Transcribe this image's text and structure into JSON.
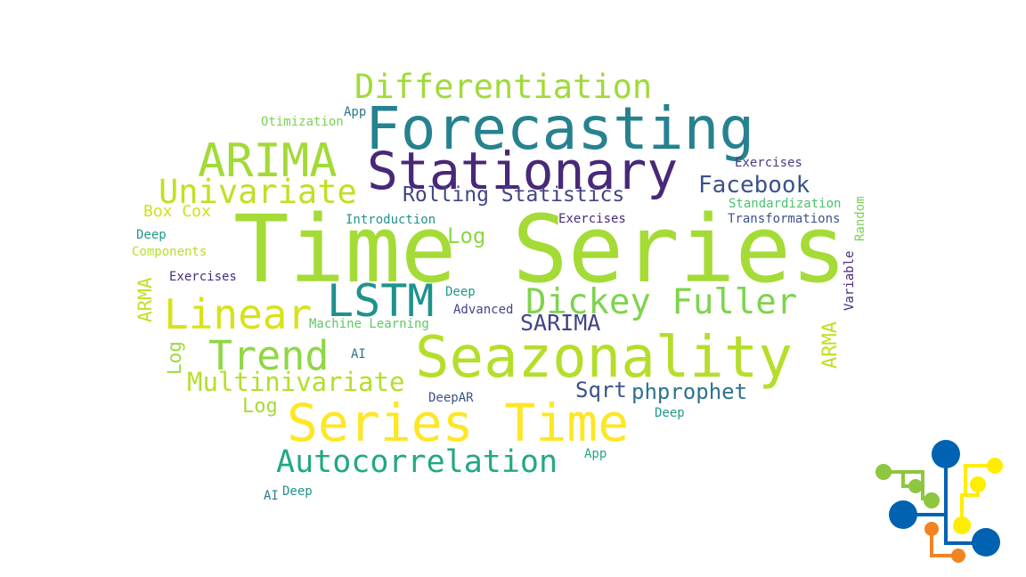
{
  "cloud": {
    "words": [
      {
        "text": "Time Series",
        "color": "#a5db36"
      },
      {
        "text": "Forecasting",
        "color": "#26828e"
      },
      {
        "text": "Stationary",
        "color": "#482878"
      },
      {
        "text": "Seazonality",
        "color": "#b5de2b"
      },
      {
        "text": "Series Time",
        "color": "#fde725"
      },
      {
        "text": "Differentiation",
        "color": "#a0da39"
      },
      {
        "text": "ARIMA",
        "color": "#a2da37"
      },
      {
        "text": "Univariate",
        "color": "#c2df23"
      },
      {
        "text": "Rolling Statistics",
        "color": "#414487"
      },
      {
        "text": "Facebook",
        "color": "#3b528b"
      },
      {
        "text": "Exercises",
        "color": "#433e85"
      },
      {
        "text": "Otimization",
        "color": "#7ad151"
      },
      {
        "text": "App",
        "color": "#2a788e"
      },
      {
        "text": "Box Cox",
        "color": "#d0e11c"
      },
      {
        "text": "Standardization",
        "color": "#4ac16d"
      },
      {
        "text": "Introduction",
        "color": "#21918c"
      },
      {
        "text": "Exercises",
        "color": "#472d7b"
      },
      {
        "text": "Transformations",
        "color": "#3b528b"
      },
      {
        "text": "Random",
        "color": "#7ad151"
      },
      {
        "text": "Deep",
        "color": "#1f988b"
      },
      {
        "text": "Log",
        "color": "#8fd744"
      },
      {
        "text": "Components",
        "color": "#b8de29"
      },
      {
        "text": "LSTM",
        "color": "#20928c"
      },
      {
        "text": "Dickey Fuller",
        "color": "#7fd34e"
      },
      {
        "text": "Exercises",
        "color": "#472d7b"
      },
      {
        "text": "Deep",
        "color": "#1f988b"
      },
      {
        "text": "Variable",
        "color": "#472d7b"
      },
      {
        "text": "ARMA",
        "color": "#c2df23"
      },
      {
        "text": "Linear",
        "color": "#d8e219"
      },
      {
        "text": "Advanced",
        "color": "#414487"
      },
      {
        "text": "SARIMA",
        "color": "#414487"
      },
      {
        "text": "Machine Learning",
        "color": "#5ec962"
      },
      {
        "text": "Log",
        "color": "#9bd93c"
      },
      {
        "text": "Trend",
        "color": "#8fd744"
      },
      {
        "text": "AI",
        "color": "#2c728e"
      },
      {
        "text": "ARMA",
        "color": "#c2df23"
      },
      {
        "text": "Multinivariate",
        "color": "#b5de2b"
      },
      {
        "text": "Sqrt",
        "color": "#3b528b"
      },
      {
        "text": "phprophet",
        "color": "#2c728e"
      },
      {
        "text": "Log",
        "color": "#a5db36"
      },
      {
        "text": "DeepAR",
        "color": "#3b528b"
      },
      {
        "text": "Deep",
        "color": "#1f988b"
      },
      {
        "text": "Autocorrelation",
        "color": "#22a884"
      },
      {
        "text": "App",
        "color": "#22a884"
      },
      {
        "text": "AI",
        "color": "#2a788e"
      },
      {
        "text": "Deep",
        "color": "#21918c"
      }
    ]
  },
  "logo": {
    "name": "circuit-logo-icon",
    "colors": {
      "blue": "#0062b1",
      "green": "#8dc63f",
      "yellow": "#ffed00",
      "orange": "#f28322"
    }
  }
}
